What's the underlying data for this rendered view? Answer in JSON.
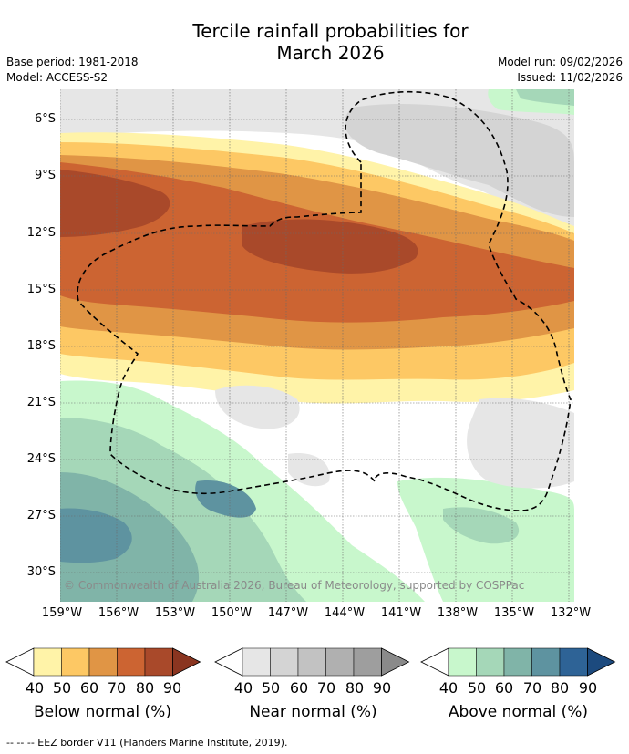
{
  "title_line1": "Tercile rainfall probabilities for",
  "title_line2": "March 2026",
  "meta": {
    "base_period": "Base period: 1981-2018",
    "model": "Model: ACCESS-S2",
    "model_run": "Model run: 09/02/2026",
    "issued": "Issued: 11/02/2026"
  },
  "map": {
    "lat_labels": [
      "6°S",
      "9°S",
      "12°S",
      "15°S",
      "18°S",
      "21°S",
      "24°S",
      "27°S",
      "30°S"
    ],
    "lon_labels": [
      "159°W",
      "156°W",
      "153°W",
      "150°W",
      "147°W",
      "144°W",
      "141°W",
      "138°W",
      "135°W",
      "132°W"
    ],
    "copyright": "© Commonwealth of Australia 2026, Bureau of Meteorology, supported by COSPPac"
  },
  "colorbars": [
    {
      "label": "Below normal (%)",
      "ticks": [
        "40",
        "50",
        "60",
        "70",
        "80",
        "90"
      ],
      "colors": [
        "#fff3a8",
        "#fdc864",
        "#e09545",
        "#cc6432",
        "#a9492a",
        "#8a3520"
      ]
    },
    {
      "label": "Near normal (%)",
      "ticks": [
        "40",
        "50",
        "60",
        "70",
        "80",
        "90"
      ],
      "colors": [
        "#e6e6e6",
        "#d4d4d4",
        "#c2c2c2",
        "#b0b0b0",
        "#9e9e9e",
        "#8a8a8a"
      ]
    },
    {
      "label": "Above normal (%)",
      "ticks": [
        "40",
        "50",
        "60",
        "70",
        "80",
        "90"
      ],
      "colors": [
        "#c8f7cc",
        "#a5d7b8",
        "#80b4a8",
        "#5e93a0",
        "#2e6396",
        "#1c4a7e"
      ]
    }
  ],
  "footnote": "--  --  -- EEZ border V11 (Flanders Marine Institute, 2019)."
}
